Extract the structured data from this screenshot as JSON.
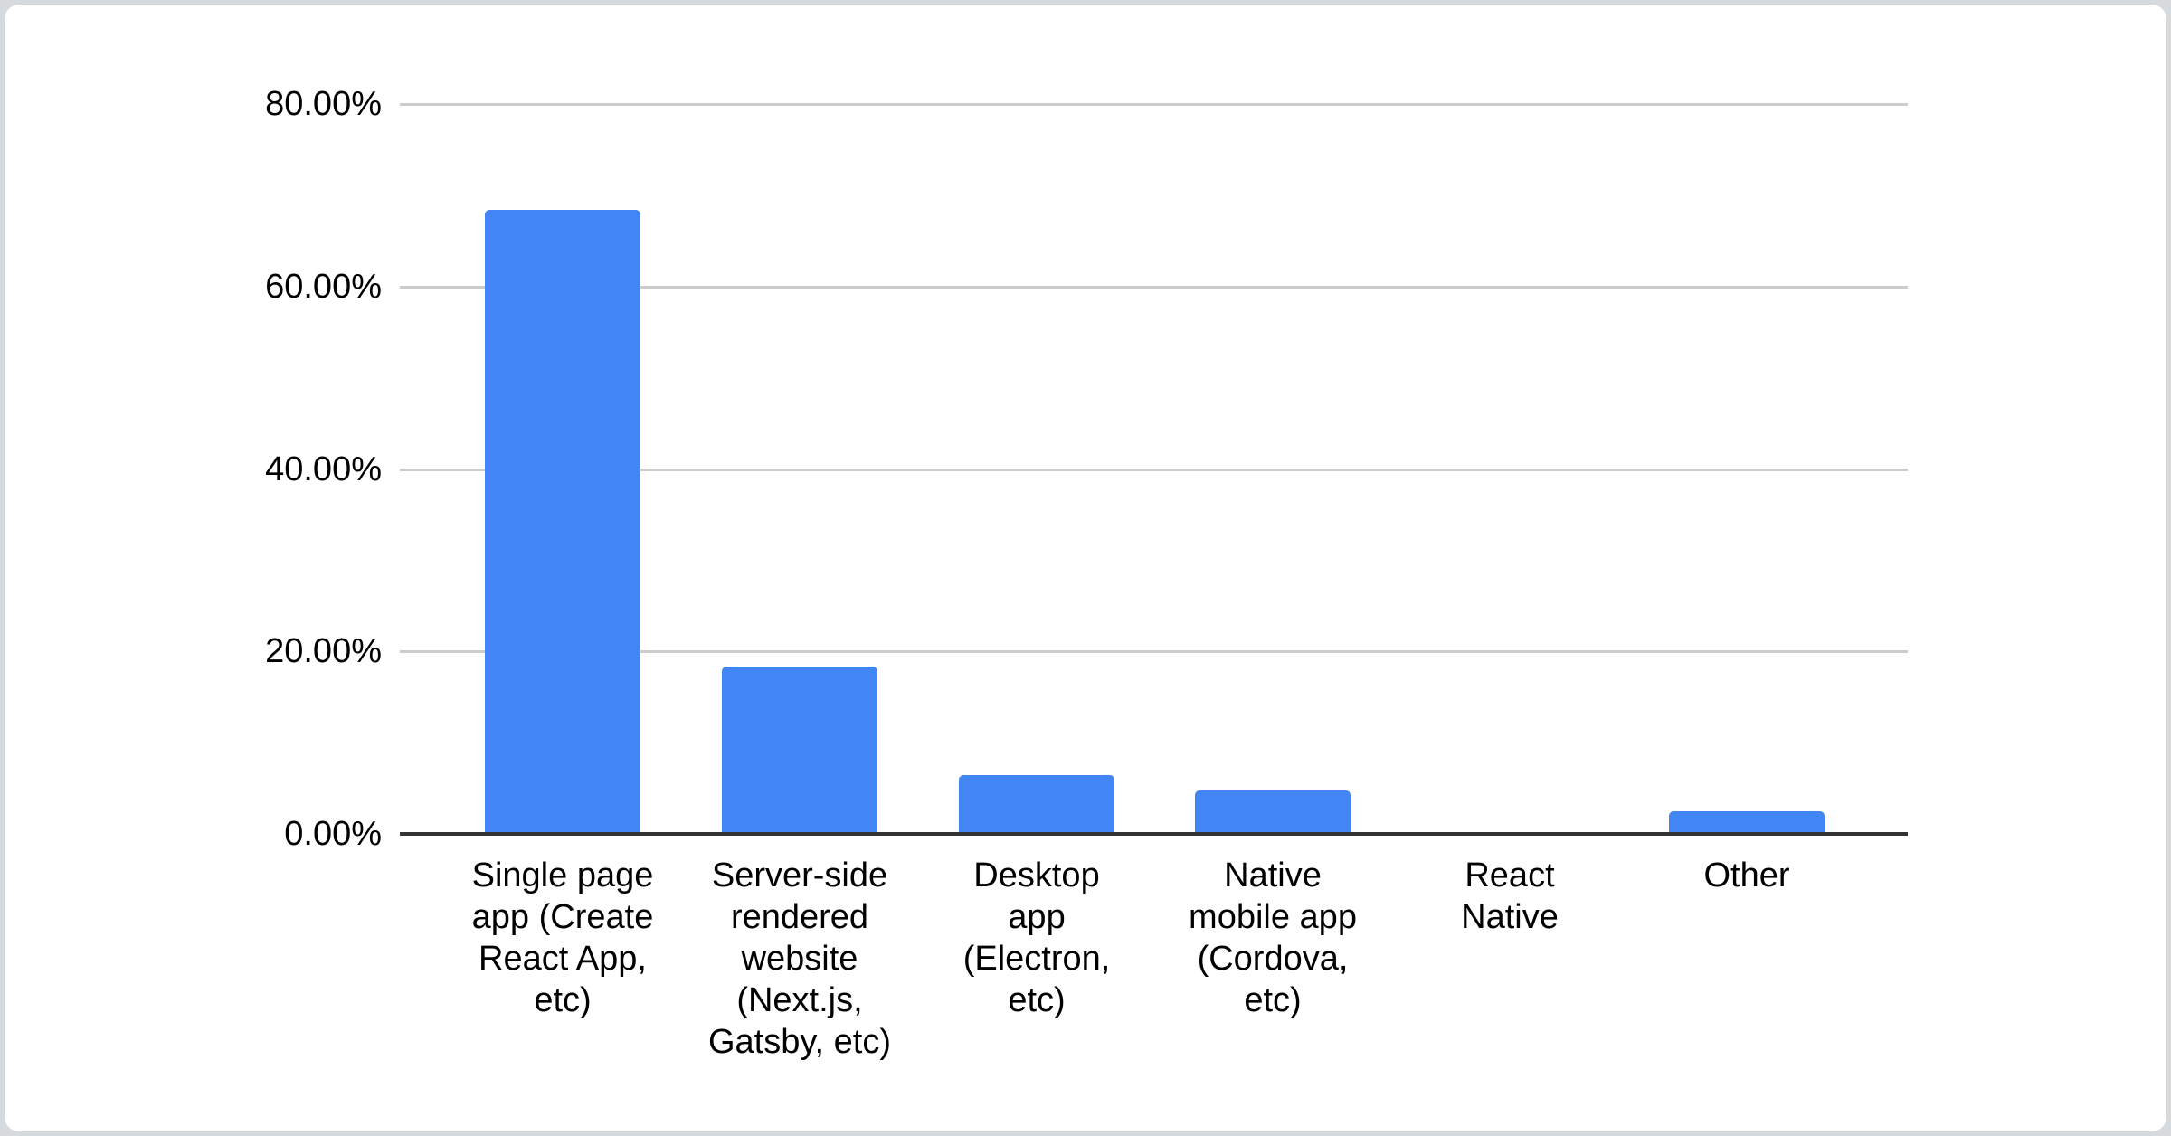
{
  "page": {
    "background_color": "#d7dadd",
    "card_background_color": "#ffffff"
  },
  "chart_data": {
    "type": "bar",
    "categories": [
      "Single page app (Create React App, etc)",
      "Server-side rendered website (Next.js, Gatsby, etc)",
      "Desktop app (Electron, etc)",
      "Native mobile app (Cordova, etc)",
      "React Native",
      "Other"
    ],
    "categories_wrapped": [
      "Single page\napp (Create\nReact App,\netc)",
      "Server-side\nrendered\nwebsite\n(Next.js,\nGatsby, etc)",
      "Desktop\napp\n(Electron,\netc)",
      "Native\nmobile app\n(Cordova,\netc)",
      "React\nNative",
      "Other"
    ],
    "values": [
      68.4,
      18.3,
      6.4,
      4.8,
      0,
      2.5
    ],
    "value_unit": "%",
    "ylim": [
      0,
      80
    ],
    "yticks": [
      {
        "value": 80,
        "label": "80.00%"
      },
      {
        "value": 60,
        "label": "60.00%"
      },
      {
        "value": 40,
        "label": "40.00%"
      },
      {
        "value": 20,
        "label": "20.00%"
      },
      {
        "value": 0,
        "label": "0.00%"
      }
    ],
    "grid": true,
    "legend_position": "none",
    "colors": {
      "bar": "#4285f4",
      "gridline": "#cccccc",
      "axis_line": "#333333",
      "label_text": "#000000"
    }
  }
}
